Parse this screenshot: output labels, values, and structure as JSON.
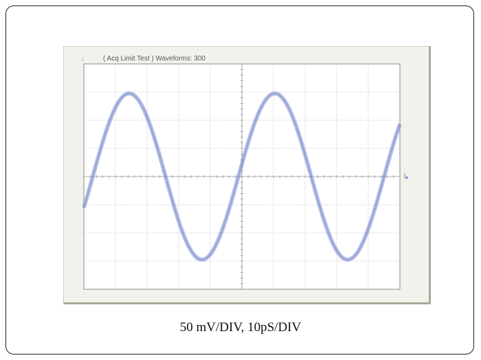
{
  "scope": {
    "status_text": "( Acq Limit Test )  Waveforms: 300",
    "trigger_marker": "↓",
    "ref_marker": "↳"
  },
  "caption": "50 mV/DIV, 10pS/DIV",
  "colors": {
    "trace": "#7f8fd2",
    "grid": "#a9a9a9",
    "frame": "#1a1a1a",
    "plot_bg": "#ffffff",
    "bezel": "#f2f2ec"
  },
  "chart_data": {
    "type": "line",
    "divisions": {
      "x": 10,
      "y": 8
    },
    "waveform": {
      "shape": "sine",
      "periods_on_screen": 2.17,
      "amplitude_divisions": 2.95,
      "start_phase_deg": -22,
      "persistence_waveforms": 300
    }
  }
}
